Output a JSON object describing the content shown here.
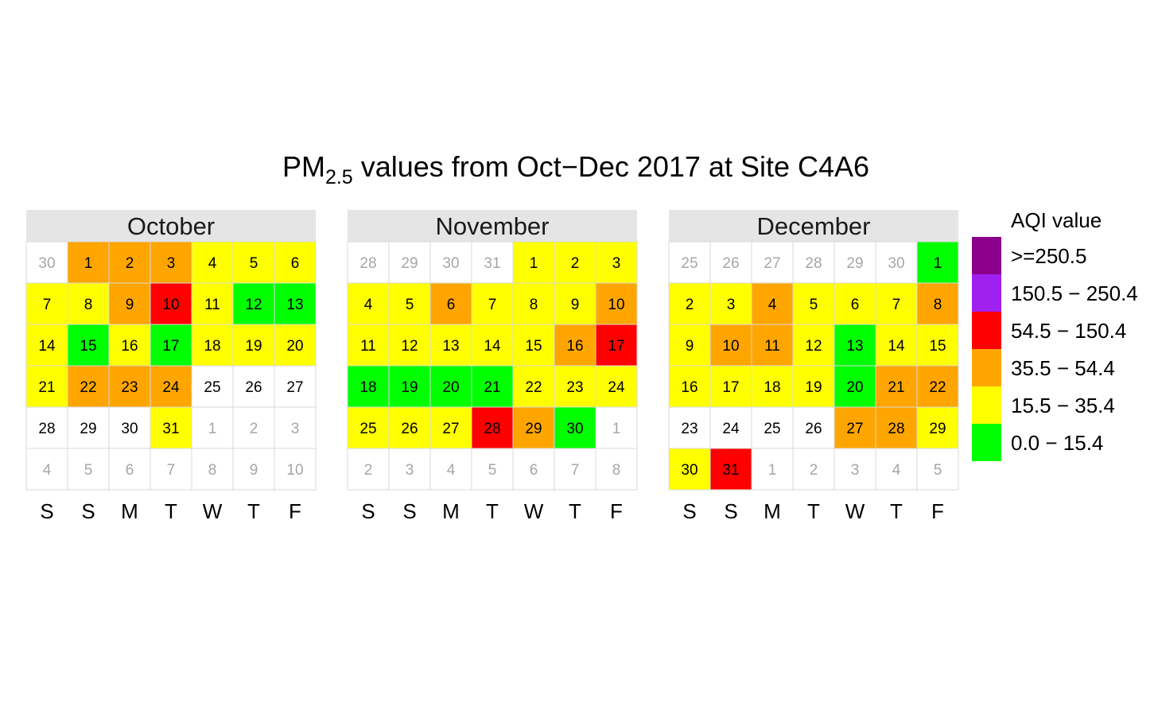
{
  "title": {
    "main": "PM",
    "sub": "2.5",
    "rest": " values from Oct−Dec 2017 at Site C4A6"
  },
  "weekday_labels": [
    "S",
    "S",
    "M",
    "T",
    "W",
    "T",
    "F"
  ],
  "legend": {
    "title": "AQI value",
    "items": [
      {
        "label": ">=250.5",
        "color": "#8b008b"
      },
      {
        "label": "150.5 − 250.4",
        "color": "#a020f0"
      },
      {
        "label": "54.5 − 150.4",
        "color": "#ff0000"
      },
      {
        "label": "35.5 − 54.4",
        "color": "#ffa500"
      },
      {
        "label": "15.5 − 35.4",
        "color": "#ffff00"
      },
      {
        "label": "0.0 − 15.4",
        "color": "#00ff00"
      }
    ]
  },
  "colors": {
    "G": "#00ff00",
    "Y": "#ffff00",
    "O": "#ffa500",
    "R": "#ff0000",
    "N": "#ffffff",
    "strip": "#e5e5e5",
    "grid": "#d9d9d9",
    "current_text": "#000000",
    "other_text": "#a6a6a6"
  },
  "chart_data": {
    "type": "heatmap",
    "months": [
      {
        "name": "October",
        "days": [
          {
            "d": "30",
            "cur": false
          },
          {
            "d": "1",
            "c": "O"
          },
          {
            "d": "2",
            "c": "O"
          },
          {
            "d": "3",
            "c": "O"
          },
          {
            "d": "4",
            "c": "Y"
          },
          {
            "d": "5",
            "c": "Y"
          },
          {
            "d": "6",
            "c": "Y"
          },
          {
            "d": "7",
            "c": "Y"
          },
          {
            "d": "8",
            "c": "Y"
          },
          {
            "d": "9",
            "c": "O"
          },
          {
            "d": "10",
            "c": "R"
          },
          {
            "d": "11",
            "c": "Y"
          },
          {
            "d": "12",
            "c": "G"
          },
          {
            "d": "13",
            "c": "G"
          },
          {
            "d": "14",
            "c": "Y"
          },
          {
            "d": "15",
            "c": "G"
          },
          {
            "d": "16",
            "c": "Y"
          },
          {
            "d": "17",
            "c": "G"
          },
          {
            "d": "18",
            "c": "Y"
          },
          {
            "d": "19",
            "c": "Y"
          },
          {
            "d": "20",
            "c": "Y"
          },
          {
            "d": "21",
            "c": "Y"
          },
          {
            "d": "22",
            "c": "O"
          },
          {
            "d": "23",
            "c": "O"
          },
          {
            "d": "24",
            "c": "O"
          },
          {
            "d": "25",
            "c": "N"
          },
          {
            "d": "26",
            "c": "N"
          },
          {
            "d": "27",
            "c": "N"
          },
          {
            "d": "28",
            "c": "N"
          },
          {
            "d": "29",
            "c": "N"
          },
          {
            "d": "30",
            "c": "N"
          },
          {
            "d": "31",
            "c": "Y"
          },
          {
            "d": "1",
            "cur": false
          },
          {
            "d": "2",
            "cur": false
          },
          {
            "d": "3",
            "cur": false
          },
          {
            "d": "4",
            "cur": false
          },
          {
            "d": "5",
            "cur": false
          },
          {
            "d": "6",
            "cur": false
          },
          {
            "d": "7",
            "cur": false
          },
          {
            "d": "8",
            "cur": false
          },
          {
            "d": "9",
            "cur": false
          },
          {
            "d": "10",
            "cur": false
          }
        ]
      },
      {
        "name": "November",
        "days": [
          {
            "d": "28",
            "cur": false
          },
          {
            "d": "29",
            "cur": false
          },
          {
            "d": "30",
            "cur": false
          },
          {
            "d": "31",
            "cur": false
          },
          {
            "d": "1",
            "c": "Y"
          },
          {
            "d": "2",
            "c": "Y"
          },
          {
            "d": "3",
            "c": "Y"
          },
          {
            "d": "4",
            "c": "Y"
          },
          {
            "d": "5",
            "c": "Y"
          },
          {
            "d": "6",
            "c": "O"
          },
          {
            "d": "7",
            "c": "Y"
          },
          {
            "d": "8",
            "c": "Y"
          },
          {
            "d": "9",
            "c": "Y"
          },
          {
            "d": "10",
            "c": "O"
          },
          {
            "d": "11",
            "c": "Y"
          },
          {
            "d": "12",
            "c": "Y"
          },
          {
            "d": "13",
            "c": "Y"
          },
          {
            "d": "14",
            "c": "Y"
          },
          {
            "d": "15",
            "c": "Y"
          },
          {
            "d": "16",
            "c": "O"
          },
          {
            "d": "17",
            "c": "R"
          },
          {
            "d": "18",
            "c": "G"
          },
          {
            "d": "19",
            "c": "G"
          },
          {
            "d": "20",
            "c": "G"
          },
          {
            "d": "21",
            "c": "G"
          },
          {
            "d": "22",
            "c": "Y"
          },
          {
            "d": "23",
            "c": "Y"
          },
          {
            "d": "24",
            "c": "Y"
          },
          {
            "d": "25",
            "c": "Y"
          },
          {
            "d": "26",
            "c": "Y"
          },
          {
            "d": "27",
            "c": "Y"
          },
          {
            "d": "28",
            "c": "R"
          },
          {
            "d": "29",
            "c": "O"
          },
          {
            "d": "30",
            "c": "G"
          },
          {
            "d": "1",
            "cur": false
          },
          {
            "d": "2",
            "cur": false
          },
          {
            "d": "3",
            "cur": false
          },
          {
            "d": "4",
            "cur": false
          },
          {
            "d": "5",
            "cur": false
          },
          {
            "d": "6",
            "cur": false
          },
          {
            "d": "7",
            "cur": false
          },
          {
            "d": "8",
            "cur": false
          }
        ]
      },
      {
        "name": "December",
        "days": [
          {
            "d": "25",
            "cur": false
          },
          {
            "d": "26",
            "cur": false
          },
          {
            "d": "27",
            "cur": false
          },
          {
            "d": "28",
            "cur": false
          },
          {
            "d": "29",
            "cur": false
          },
          {
            "d": "30",
            "cur": false
          },
          {
            "d": "1",
            "c": "G"
          },
          {
            "d": "2",
            "c": "Y"
          },
          {
            "d": "3",
            "c": "Y"
          },
          {
            "d": "4",
            "c": "O"
          },
          {
            "d": "5",
            "c": "Y"
          },
          {
            "d": "6",
            "c": "Y"
          },
          {
            "d": "7",
            "c": "Y"
          },
          {
            "d": "8",
            "c": "O"
          },
          {
            "d": "9",
            "c": "Y"
          },
          {
            "d": "10",
            "c": "O"
          },
          {
            "d": "11",
            "c": "O"
          },
          {
            "d": "12",
            "c": "Y"
          },
          {
            "d": "13",
            "c": "G"
          },
          {
            "d": "14",
            "c": "Y"
          },
          {
            "d": "15",
            "c": "Y"
          },
          {
            "d": "16",
            "c": "Y"
          },
          {
            "d": "17",
            "c": "Y"
          },
          {
            "d": "18",
            "c": "Y"
          },
          {
            "d": "19",
            "c": "Y"
          },
          {
            "d": "20",
            "c": "G"
          },
          {
            "d": "21",
            "c": "O"
          },
          {
            "d": "22",
            "c": "O"
          },
          {
            "d": "23",
            "c": "N"
          },
          {
            "d": "24",
            "c": "N"
          },
          {
            "d": "25",
            "c": "N"
          },
          {
            "d": "26",
            "c": "N"
          },
          {
            "d": "27",
            "c": "O"
          },
          {
            "d": "28",
            "c": "O"
          },
          {
            "d": "29",
            "c": "Y"
          },
          {
            "d": "30",
            "c": "Y"
          },
          {
            "d": "31",
            "c": "R"
          },
          {
            "d": "1",
            "cur": false
          },
          {
            "d": "2",
            "cur": false
          },
          {
            "d": "3",
            "cur": false
          },
          {
            "d": "4",
            "cur": false
          },
          {
            "d": "5",
            "cur": false
          }
        ]
      }
    ]
  }
}
